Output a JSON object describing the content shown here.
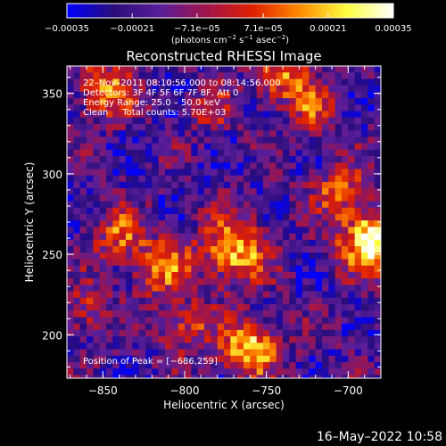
{
  "chart_data": {
    "type": "heatmap",
    "title": "Reconstructed RHESSI Image",
    "xlabel": "Heliocentric X (arcsec)",
    "ylabel": "Heliocentric Y (arcsec)",
    "xlim": [
      -872,
      -680
    ],
    "ylim": [
      173,
      367
    ],
    "x_ticks": [
      -850,
      -800,
      -750,
      -700
    ],
    "x_tick_labels": [
      "−850",
      "−800",
      "−750",
      "−700"
    ],
    "y_ticks": [
      200,
      250,
      300,
      350
    ],
    "y_tick_labels": [
      "200",
      "250",
      "300",
      "350"
    ],
    "colorbar": {
      "min": -0.00035,
      "max": 0.00035,
      "ticks": [
        -0.00035,
        -0.00021,
        -7.1e-05,
        7.1e-05,
        0.00021,
        0.00035
      ],
      "tick_labels": [
        "−0.00035",
        "−0.00021",
        "−7.1e−05",
        "7.1e−05",
        "0.00021",
        "0.00035"
      ],
      "units_prefix": "(photons cm",
      "units_sup1": "−2",
      "units_mid": " s",
      "units_sup2": "−1",
      "units_mid2": " asec",
      "units_sup3": "−2",
      "units_suffix": ")",
      "colors": [
        "#0000ff",
        "#2a0d7a",
        "#5a1e9a",
        "#a0144a",
        "#e02000",
        "#ff8c00",
        "#ffff40",
        "#ffffff"
      ]
    },
    "annotations": {
      "time_range": "22–Nov–2011 08:10:56.000 to 08:14:56.000",
      "detectors": "Detectors: 3F 4F 5F 6F 7F 8F, Att 0",
      "energy": "Energy Range: 25.0 – 50.0 keV",
      "clean": "Clean     Total counts: 5.70E+03",
      "peak": "Position of Peak = [−686,259]"
    },
    "peak": [
      -686,
      259
    ],
    "sources": [
      {
        "x": -686,
        "y": 259,
        "amp": 1.0,
        "sigma": 14
      },
      {
        "x": -760,
        "y": 192,
        "amp": 0.9,
        "sigma": 12
      },
      {
        "x": -770,
        "y": 252,
        "amp": 0.85,
        "sigma": 14
      },
      {
        "x": -815,
        "y": 242,
        "amp": 0.6,
        "sigma": 12
      },
      {
        "x": -840,
        "y": 262,
        "amp": 0.55,
        "sigma": 11
      },
      {
        "x": -848,
        "y": 352,
        "amp": 0.65,
        "sigma": 12
      },
      {
        "x": -740,
        "y": 360,
        "amp": 0.6,
        "sigma": 12
      },
      {
        "x": -705,
        "y": 290,
        "amp": 0.55,
        "sigma": 11
      },
      {
        "x": -800,
        "y": 205,
        "amp": 0.5,
        "sigma": 11
      },
      {
        "x": -720,
        "y": 340,
        "amp": 0.45,
        "sigma": 10
      },
      {
        "x": -860,
        "y": 215,
        "amp": 0.45,
        "sigma": 10
      },
      {
        "x": -785,
        "y": 340,
        "amp": 0.4,
        "sigma": 9
      }
    ]
  },
  "footer": {
    "timestamp": "16–May–2022 10:58"
  }
}
